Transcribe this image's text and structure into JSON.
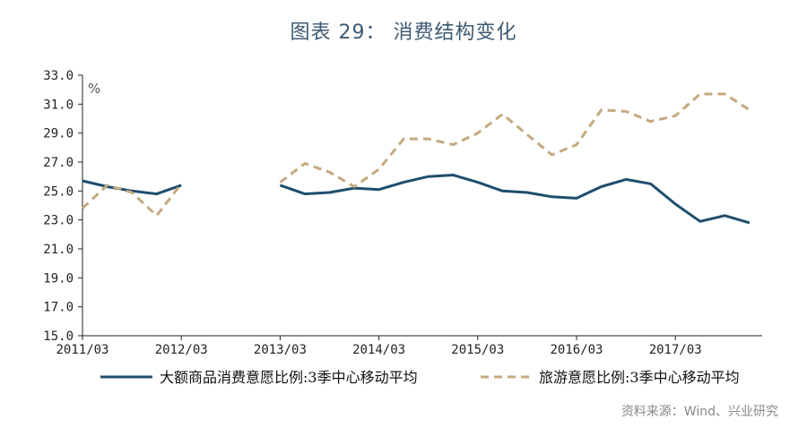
{
  "chart_data": {
    "type": "line",
    "title": "图表 29： 消费结构变化",
    "unit_label": "%",
    "ylim": [
      15.0,
      33.0
    ],
    "y_ticks": [
      "33.0",
      "31.0",
      "29.0",
      "27.0",
      "25.0",
      "23.0",
      "21.0",
      "19.0",
      "17.0",
      "15.0"
    ],
    "x_ticks": [
      "2011/03",
      "2012/03",
      "2013/03",
      "2014/03",
      "2015/03",
      "2016/03",
      "2017/03"
    ],
    "x_points": [
      "2011/03",
      "2011/06",
      "2011/09",
      "2011/12",
      "2012/03",
      "2012/06",
      "2012/09",
      "2012/12",
      "2013/03",
      "2013/06",
      "2013/09",
      "2013/12",
      "2014/03",
      "2014/06",
      "2014/09",
      "2014/12",
      "2015/03",
      "2015/06",
      "2015/09",
      "2015/12",
      "2016/03",
      "2016/06",
      "2016/09",
      "2016/12",
      "2017/03",
      "2017/06",
      "2017/09",
      "2017/12"
    ],
    "series": [
      {
        "name": "大额商品消费意愿比例:3季中心移动平均",
        "color": "#1f4e6e",
        "style": "solid",
        "values": [
          25.7,
          25.3,
          25.0,
          24.8,
          25.4,
          null,
          null,
          null,
          25.4,
          24.8,
          24.9,
          25.2,
          25.1,
          25.6,
          26.0,
          26.1,
          25.6,
          25.0,
          24.9,
          24.6,
          24.5,
          25.3,
          25.8,
          25.5,
          24.1,
          22.9,
          23.3,
          22.8
        ]
      },
      {
        "name": "旅游意愿比例:3季中心移动平均",
        "color": "#c4a97f",
        "style": "dashed",
        "values": [
          23.8,
          25.4,
          24.9,
          23.3,
          25.5,
          null,
          null,
          null,
          25.6,
          26.9,
          26.3,
          25.3,
          26.5,
          28.6,
          28.6,
          28.2,
          29.0,
          30.3,
          28.9,
          27.5,
          28.2,
          30.6,
          30.5,
          29.8,
          30.2,
          31.7,
          31.7,
          30.6
        ]
      }
    ],
    "grid": false,
    "legend_position": "bottom"
  },
  "source": "资料来源：Wind、兴业研究"
}
